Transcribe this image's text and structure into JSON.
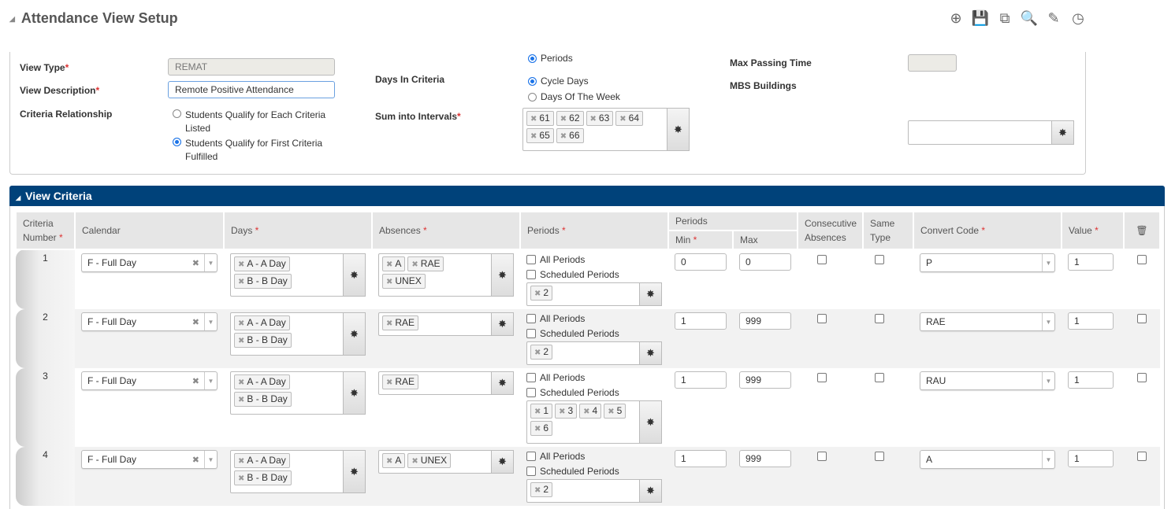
{
  "title": "Attendance View Setup",
  "toolbar": [
    {
      "icon": "plus-circle-icon",
      "g": "⊕"
    },
    {
      "icon": "save-icon",
      "g": "💾"
    },
    {
      "icon": "copy-icon",
      "g": "⧉"
    },
    {
      "icon": "search-icon",
      "g": "🔍"
    },
    {
      "icon": "edit-icon",
      "g": "✎"
    },
    {
      "icon": "history-clock-icon",
      "g": "◷"
    }
  ],
  "form": {
    "view_type_label": "View Type",
    "view_type": "REMAT",
    "view_desc_label": "View Description",
    "view_desc": "Remote Positive Attendance",
    "criteria_rel_label": "Criteria Relationship",
    "criteria_rel_options": [
      "Students Qualify for Each Criteria Listed",
      "Students Qualify for First Criteria Fulfilled"
    ],
    "criteria_rel_selected": 1,
    "days_label": "Days In Criteria",
    "days_options": [
      "Periods",
      "Cycle Days",
      "Days Of The Week"
    ],
    "days_selected": [
      0,
      1
    ],
    "sum_label": "Sum into Intervals",
    "sum_values": [
      "61",
      "62",
      "63",
      "64",
      "65",
      "66"
    ],
    "max_passing_label": "Max Passing Time",
    "max_passing": "",
    "mbs_label": "MBS Buildings",
    "mbs": ""
  },
  "criteria": {
    "header": "View Criteria",
    "columns": {
      "num": "Criteria Number",
      "calendar": "Calendar",
      "days": "Days",
      "absences": "Absences",
      "periods": "Periods",
      "periods_group": "Periods",
      "min": "Min",
      "max": "Max",
      "consec": "Consecutive Absences",
      "same": "Same Type",
      "convert": "Convert Code",
      "value": "Value"
    },
    "all_periods": "All Periods",
    "scheduled_periods": "Scheduled Periods",
    "rows": [
      {
        "num": "1",
        "calendar": "F - Full Day",
        "days": [
          "A - A Day",
          "B - B Day"
        ],
        "absences": [
          "A",
          "RAE",
          "UNEX"
        ],
        "periods": [
          "2"
        ],
        "min": "0",
        "max": "0",
        "convert": "P",
        "value": "1"
      },
      {
        "num": "2",
        "calendar": "F - Full Day",
        "days": [
          "A - A Day",
          "B - B Day"
        ],
        "absences": [
          "RAE"
        ],
        "periods": [
          "2"
        ],
        "min": "1",
        "max": "999",
        "convert": "RAE",
        "value": "1"
      },
      {
        "num": "3",
        "calendar": "F - Full Day",
        "days": [
          "A - A Day",
          "B - B Day"
        ],
        "absences": [
          "RAE"
        ],
        "periods": [
          "1",
          "3",
          "4",
          "5",
          "6"
        ],
        "min": "1",
        "max": "999",
        "convert": "RAU",
        "value": "1"
      },
      {
        "num": "4",
        "calendar": "F - Full Day",
        "days": [
          "A - A Day",
          "B - B Day"
        ],
        "absences": [
          "A",
          "UNEX"
        ],
        "periods": [
          "2"
        ],
        "min": "1",
        "max": "999",
        "convert": "A",
        "value": "1"
      }
    ]
  }
}
